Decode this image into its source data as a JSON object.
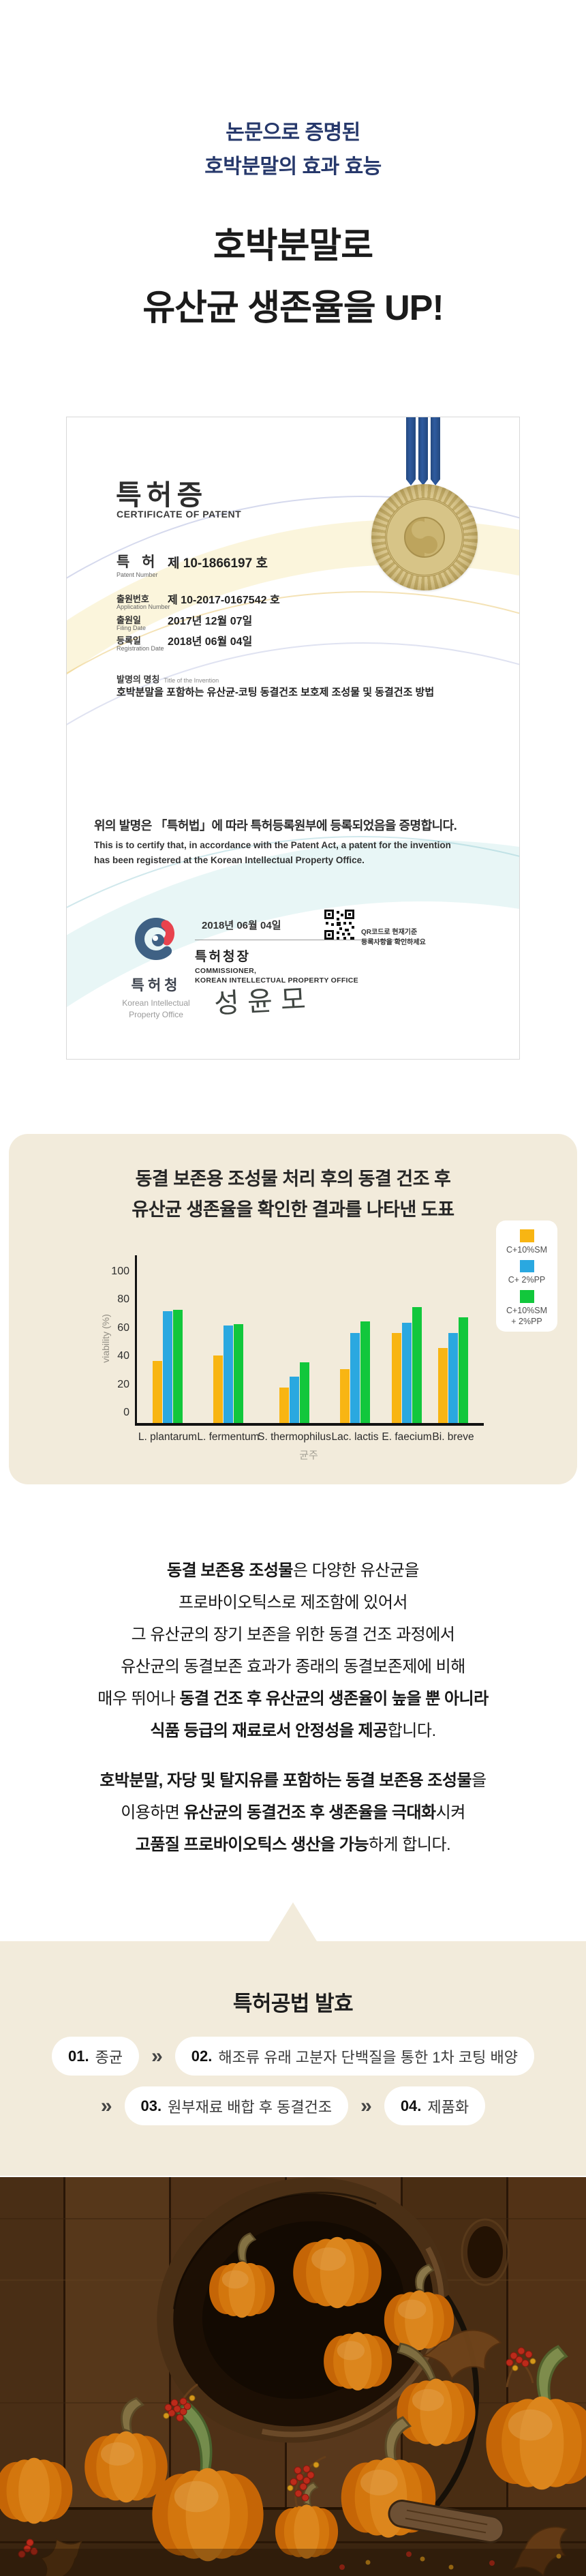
{
  "colors": {
    "navy": "#26386b",
    "beige": "#f2ebdb",
    "title_dark": "#1b1b1b"
  },
  "hero": {
    "subtitle_line1": "논문으로 증명된",
    "subtitle_line2": "호박분말의 효과 효능",
    "title_line1": "호박분말로",
    "title_line2": "유산균 생존율을 UP!"
  },
  "certificate": {
    "title": "특허증",
    "title_en": "CERTIFICATE OF PATENT",
    "rows": [
      {
        "label": "특 허",
        "label_en": "Patent Number",
        "value": "제 10-1866197 호"
      },
      {
        "label": "출원번호",
        "label_en": "Application Number",
        "value": "제 10-2017-0167542 호"
      },
      {
        "label": "출원일",
        "label_en": "Filing Date",
        "value": "2017년  12월  07일"
      },
      {
        "label": "등록일",
        "label_en": "Registration Date",
        "value": "2018년  06월  04일"
      }
    ],
    "invention_label": "발명의 명칭",
    "invention_label_en": "Title of the Invention",
    "invention_title": "호박분말을 포함하는 유산균-코팅 동결건조 보호제 조성물 및 동결건조 방법",
    "statement_ko": "위의 발명은 「특허법」에 따라 특허등록원부에 등록되었음을 증명합니다.",
    "statement_en1": "This is to certify that, in accordance with the Patent Act, a patent for the invention",
    "statement_en2": "has been registered at the Korean Intellectual Property Office.",
    "issue_date": "2018년 06월 04일",
    "commissioner_ko": "특허청장",
    "commissioner_en1": "COMMISSIONER,",
    "commissioner_en2": "KOREAN INTELLECTUAL PROPERTY OFFICE",
    "signature": "성윤모",
    "qr_note1": "QR코드로 현재기준",
    "qr_note2": "등록사항을 확인하세요",
    "logo_ko": "특허청",
    "logo_en1": "Korean Intellectual",
    "logo_en2": "Property Office"
  },
  "chart_panel": {
    "title_line1": "동결 보존용 조성물 처리 후의 동결 건조 후",
    "title_line2": "유산균 생존율을 확인한 결과를 나타낸 도표"
  },
  "chart_data": {
    "type": "bar",
    "title": "동결 보존용 조성물 처리 후의 동결 건조 후 유산균 생존율을 확인한 결과를 나타낸 도표",
    "categories": [
      "L. plantarum",
      "L. fermentum",
      "S. thermophilus",
      "Lac. lactis",
      "E. faecium",
      "Bi. breve"
    ],
    "series": [
      {
        "name": "C+10%SM",
        "color": "#f8b513",
        "values": [
          44,
          48,
          25,
          38,
          64,
          53
        ]
      },
      {
        "name": "C+ 2%PP",
        "color": "#2aa8e0",
        "values": [
          79,
          69,
          33,
          64,
          71,
          64
        ]
      },
      {
        "name": "C+10%SM\n+ 2%PP",
        "color": "#12c73c",
        "values": [
          80,
          70,
          43,
          72,
          82,
          75
        ]
      }
    ],
    "xlabel": "균주",
    "ylabel": "viability (%)",
    "ylim": [
      0,
      100
    ],
    "yticks": [
      0,
      20,
      40,
      60,
      80,
      100
    ],
    "grid": false,
    "legend_position": "right"
  },
  "paragraph1": {
    "lines": [
      [
        {
          "t": "동결 보존용 조성물",
          "b": true
        },
        {
          "t": "은 다양한 유산균을",
          "b": false
        }
      ],
      [
        {
          "t": "프로바이오틱스로 제조함에 있어서",
          "b": false
        }
      ],
      [
        {
          "t": "그 유산균의 장기 보존을 위한 동결 건조 과정에서",
          "b": false
        }
      ],
      [
        {
          "t": "유산균의 동결보존 효과가 종래의 동결보존제에 비해",
          "b": false
        }
      ],
      [
        {
          "t": "매우 뛰어나 ",
          "b": false
        },
        {
          "t": "동결 건조 후 유산균의 생존율이 높을 뿐 아니라",
          "b": true
        }
      ],
      [
        {
          "t": "식품 등급의 재료로서 안정성을 제공",
          "b": true
        },
        {
          "t": "합니다.",
          "b": false
        }
      ]
    ]
  },
  "paragraph2": {
    "lines": [
      [
        {
          "t": "호박분말, 자당 및 탈지유를 포함하는 동결 보존용 조성물",
          "b": true
        },
        {
          "t": "을",
          "b": false
        }
      ],
      [
        {
          "t": "이용하면 ",
          "b": false
        },
        {
          "t": "유산균의 동결건조 후 생존율을 극대화",
          "b": true
        },
        {
          "t": "시켜",
          "b": false
        }
      ],
      [
        {
          "t": "고품질 프로바이오틱스 생산을 가능",
          "b": true
        },
        {
          "t": "하게 합니다.",
          "b": false
        }
      ]
    ]
  },
  "process": {
    "title": "특허공법 발효",
    "separator": "»",
    "steps": [
      {
        "no": "01.",
        "label": "종균"
      },
      {
        "no": "02.",
        "label": "해조류 유래 고분자 단백질을 통한 1차 코팅 배양"
      },
      {
        "no": "03.",
        "label": "원부재료 배합 후 동결건조"
      },
      {
        "no": "04.",
        "label": "제품화"
      }
    ]
  }
}
